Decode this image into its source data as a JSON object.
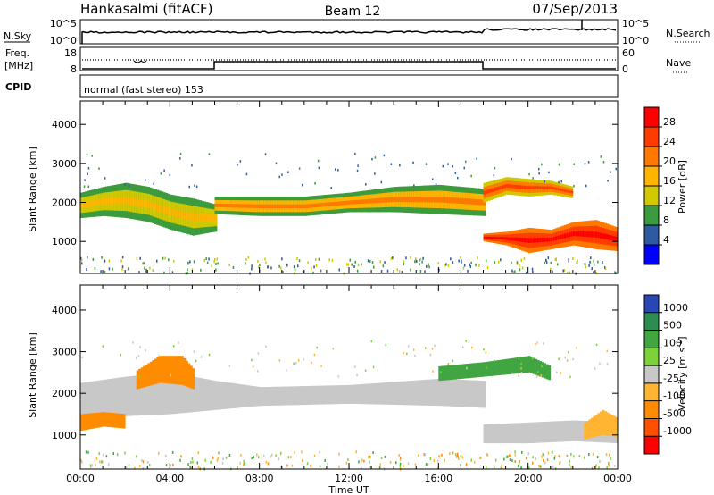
{
  "header": {
    "station": "Hankasalmi (fitACF)",
    "beam": "Beam 12",
    "date": "07/Sep/2013"
  },
  "panels": {
    "nsky": {
      "left_label": "N.Sky",
      "right_label": "N.Search",
      "left_ticks": [
        "10^5",
        "10^0"
      ],
      "right_ticks": [
        "10^5",
        "10^0"
      ]
    },
    "freq": {
      "left_label_line1": "Freq.",
      "left_label_line2": "[MHz]",
      "right_label": "Nave",
      "left_ticks": [
        "18",
        "8"
      ],
      "right_ticks": [
        "60",
        "0"
      ]
    },
    "cpid": {
      "label": "CPID",
      "program": "normal (fast stereo) 153"
    }
  },
  "power_colorbar": {
    "title": "Power [dB]",
    "labels": [
      "28",
      "24",
      "20",
      "16",
      "12",
      "8",
      "4"
    ],
    "colors": [
      "#ff0000",
      "#ff3c00",
      "#ff7800",
      "#ffb400",
      "#d2c800",
      "#3c9b3c",
      "#2d5aa0",
      "#0000ff"
    ]
  },
  "velocity_colorbar": {
    "title": "Velocity [m s^-1]",
    "title_main": "Velocity",
    "title_unit": "[m s",
    "title_exp": "-1",
    "title_close": "]",
    "labels": [
      "1000",
      "500",
      "100",
      "25",
      "-25",
      "-100",
      "-500",
      "-1000"
    ],
    "colors": [
      "#2846b4",
      "#2d8c50",
      "#41a541",
      "#7dd23c",
      "#c8c8c8",
      "#ffb432",
      "#ff8c00",
      "#ff5000",
      "#ff0000"
    ]
  },
  "chart_data": {
    "type": "heatmap",
    "xlabel": "Time UT",
    "ylabel": "Slant Range [km]",
    "x_ticks": [
      "00:00",
      "04:00",
      "08:00",
      "12:00",
      "16:00",
      "20:00",
      "00:00"
    ],
    "x_range_hours": [
      0,
      24
    ],
    "y_ticks": [
      1000,
      2000,
      3000,
      4000
    ],
    "y_range_km": [
      180,
      4600
    ],
    "panels": [
      {
        "name": "Power [dB]",
        "colorbar_range_db": [
          0,
          32
        ],
        "bands": [
          {
            "hours": [
              0.0,
              1.0,
              2.0,
              3.0,
              4.0,
              5.0,
              6.0
            ],
            "lower_km": [
              1600,
              1650,
              1600,
              1500,
              1300,
              1150,
              1250
            ],
            "upper_km": [
              2250,
              2400,
              2500,
              2400,
              2200,
              2100,
              1950
            ],
            "value_db": 16
          },
          {
            "hours": [
              6.0,
              8.0,
              10.0,
              12.0,
              14.0,
              16.0,
              18.0
            ],
            "lower_km": [
              1700,
              1650,
              1650,
              1750,
              1750,
              1700,
              1650
            ],
            "upper_km": [
              2150,
              2150,
              2150,
              2250,
              2400,
              2450,
              2350
            ],
            "value_db": 18
          },
          {
            "hours": [
              18.0,
              19.0,
              20.0,
              21.0,
              22.0,
              23.0,
              24.0
            ],
            "lower_km": [
              1000,
              900,
              700,
              800,
              900,
              800,
              750
            ],
            "upper_km": [
              1200,
              1250,
              1350,
              1300,
              1500,
              1550,
              1350
            ],
            "value_db": 28
          },
          {
            "hours": [
              18.0,
              19.0,
              20.0,
              21.0,
              22.0
            ],
            "lower_km": [
              2000,
              2200,
              2150,
              2200,
              2100
            ],
            "upper_km": [
              2500,
              2650,
              2600,
              2550,
              2400
            ],
            "value_db": 22
          }
        ]
      },
      {
        "name": "Velocity [m s^-1]",
        "bands": [
          {
            "hours": [
              0.0,
              2.0,
              4.0,
              6.0,
              8.0,
              12.0,
              16.0,
              18.0
            ],
            "lower_km": [
              1400,
              1450,
              1500,
              1600,
              1700,
              1750,
              1700,
              1650
            ],
            "upper_km": [
              2250,
              2400,
              2500,
              2300,
              2150,
              2200,
              2350,
              2300
            ],
            "value_ms": 0
          },
          {
            "hours": [
              2.5,
              3.5,
              4.5,
              5.0
            ],
            "lower_km": [
              2100,
              2250,
              2200,
              2100
            ],
            "upper_km": [
              2550,
              2900,
              2900,
              2600
            ],
            "value_ms": -300
          },
          {
            "hours": [
              0.0,
              1.0,
              2.0
            ],
            "lower_km": [
              1100,
              1200,
              1150
            ],
            "upper_km": [
              1500,
              1550,
              1500
            ],
            "value_ms": -200
          },
          {
            "hours": [
              18.0,
              20.0,
              22.0,
              24.0
            ],
            "lower_km": [
              800,
              800,
              850,
              800
            ],
            "upper_km": [
              1250,
              1300,
              1350,
              1300
            ],
            "value_ms": 0
          },
          {
            "hours": [
              22.5,
              23.3,
              24.0
            ],
            "lower_km": [
              900,
              1000,
              950
            ],
            "upper_km": [
              1300,
              1600,
              1400
            ],
            "value_ms": -100
          },
          {
            "hours": [
              16.0,
              18.0,
              20.0,
              21.0
            ],
            "lower_km": [
              2300,
              2400,
              2500,
              2300
            ],
            "upper_km": [
              2650,
              2750,
              2900,
              2650
            ],
            "value_ms": 150
          }
        ]
      }
    ]
  }
}
